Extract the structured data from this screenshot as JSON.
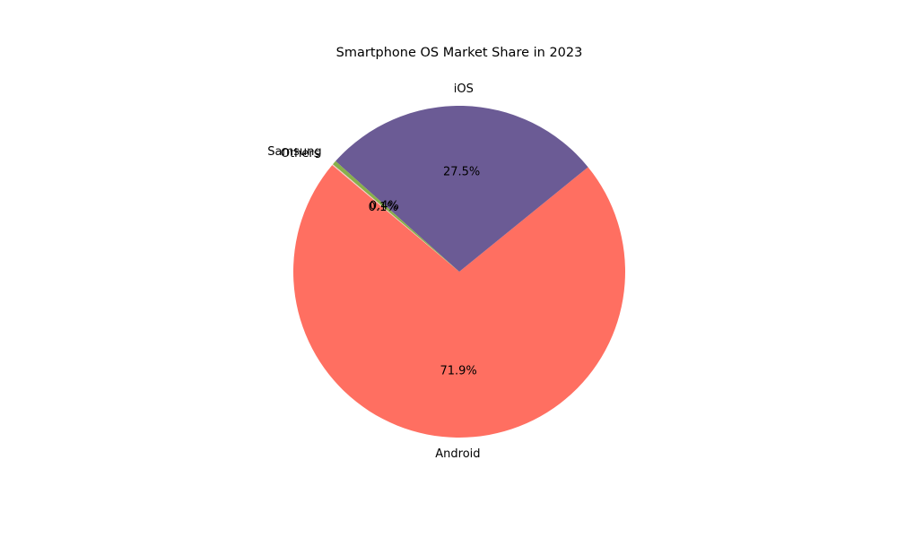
{
  "chart_data": {
    "type": "pie",
    "title": "Smartphone OS Market Share in 2023",
    "slices": [
      {
        "label": "Android",
        "value": 71.9,
        "pct_label": "71.9%",
        "color": "#ff6f61"
      },
      {
        "label": "iOS",
        "value": 27.5,
        "pct_label": "27.5%",
        "color": "#6b5b95"
      },
      {
        "label": "Samsung",
        "value": 0.4,
        "pct_label": "0.4%",
        "color": "#88b04b"
      },
      {
        "label": "Others",
        "value": 0.1,
        "pct_label": "0.1%",
        "color": "#f7cac9"
      }
    ]
  }
}
